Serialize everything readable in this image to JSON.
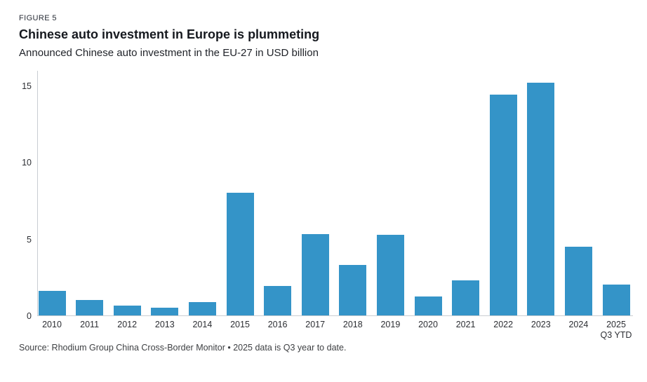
{
  "header": {
    "figure_label": "FIGURE 5",
    "title": "Chinese auto investment in Europe is plummeting",
    "subtitle": "Announced Chinese auto investment in the EU-27 in USD billion"
  },
  "source": "Source: Rhodium Group China Cross-Border Monitor • 2025 data is Q3 year to date.",
  "chart_data": {
    "type": "bar",
    "title": "Chinese auto investment in Europe is plummeting",
    "subtitle": "Announced Chinese auto investment in the EU-27 in USD billion",
    "categories": [
      "2010",
      "2011",
      "2012",
      "2013",
      "2014",
      "2015",
      "2016",
      "2017",
      "2018",
      "2019",
      "2020",
      "2021",
      "2022",
      "2023",
      "2024",
      "2025 Q3 YTD"
    ],
    "tick_lines": [
      [
        "2010"
      ],
      [
        "2011"
      ],
      [
        "2012"
      ],
      [
        "2013"
      ],
      [
        "2014"
      ],
      [
        "2015"
      ],
      [
        "2016"
      ],
      [
        "2017"
      ],
      [
        "2018"
      ],
      [
        "2019"
      ],
      [
        "2020"
      ],
      [
        "2021"
      ],
      [
        "2022"
      ],
      [
        "2023"
      ],
      [
        "2024"
      ],
      [
        "2025",
        "Q3 YTD"
      ]
    ],
    "values": [
      1.6,
      1.0,
      0.65,
      0.5,
      0.85,
      8.0,
      1.9,
      5.3,
      3.3,
      5.25,
      1.25,
      2.3,
      14.4,
      15.2,
      4.5,
      2.0
    ],
    "xlabel": "",
    "ylabel": "",
    "yticks": [
      0,
      5,
      10,
      15
    ],
    "ylim": [
      0,
      16
    ],
    "grid": false,
    "legend": "none",
    "bar_color": "#3494c8"
  },
  "layout_colors": {
    "axis_line": "#c9cdd2",
    "background": "#ffffff"
  }
}
